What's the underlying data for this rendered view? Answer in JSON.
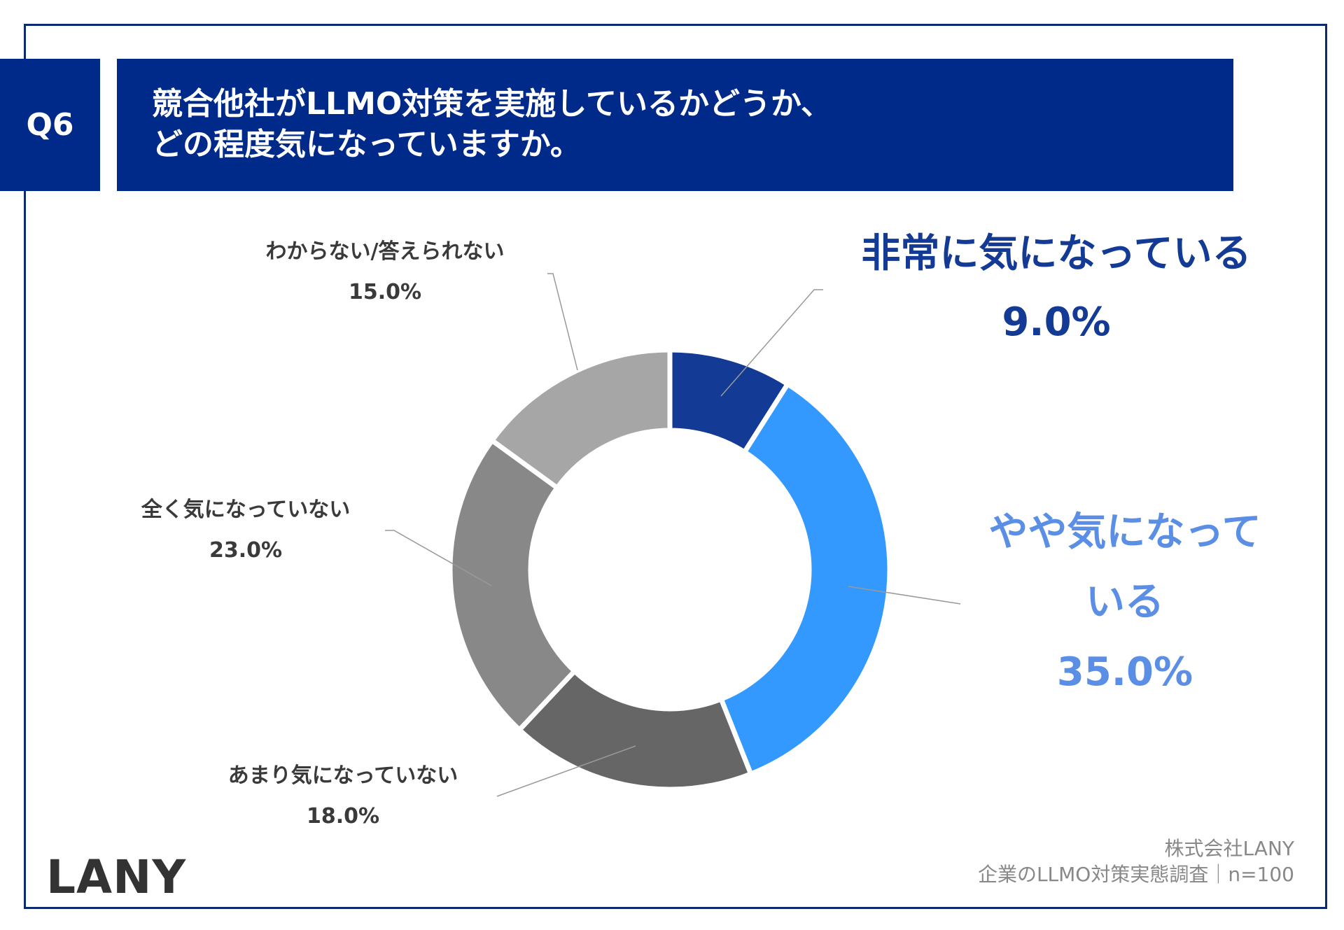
{
  "header": {
    "question_no": "Q6",
    "title_line1": "競合他社がLLMO対策を実施しているかどうか、",
    "title_line2": "どの程度気になっていますか。"
  },
  "chart_data": {
    "type": "pie",
    "donut": true,
    "start": "top, clockwise",
    "categories": [
      "非常に気になっている",
      "やや気になっている",
      "あまり気になっていない",
      "全く気になっていない",
      "わからない/答えられない"
    ],
    "values": [
      9.0,
      35.0,
      18.0,
      23.0,
      15.0
    ],
    "labels": [
      "9.0%",
      "35.0%",
      "18.0%",
      "23.0%",
      "15.0%"
    ],
    "colors": [
      "#133a94",
      "#3399ff",
      "#666666",
      "#888888",
      "#a6a6a6"
    ]
  },
  "labels": {
    "very": {
      "line1": "非常に気になっている",
      "value": "9.0%"
    },
    "somewhat": {
      "line1": "やや気になって",
      "line2": "いる",
      "value": "35.0%"
    },
    "notmuch": {
      "line1": "あまり気になっていない",
      "value": "18.0%"
    },
    "notatall": {
      "line1": "全く気になっていない",
      "value": "23.0%"
    },
    "unknown": {
      "line1": "わからない/答えられない",
      "value": "15.0%"
    }
  },
  "footer": {
    "logo": "LANY",
    "company": "株式会社LANY",
    "survey": "企業のLLMO対策実態調査｜n=100"
  }
}
